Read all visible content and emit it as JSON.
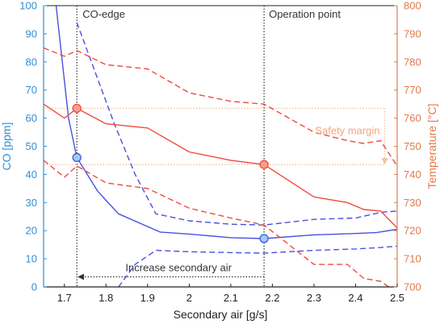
{
  "chart_data": {
    "type": "line",
    "xlabel": "Secondary air [g/s]",
    "ylabel_left": "CO [ppm]",
    "ylabel_right": "Temperature [°C]",
    "xlim": [
      1.65,
      2.5
    ],
    "ylim_left": [
      0,
      100
    ],
    "ylim_right": [
      700,
      800
    ],
    "x_ticks": [
      "1.7",
      "1.8",
      "1.9",
      "2",
      "2.1",
      "2.2",
      "2.3",
      "2.4",
      "2.5"
    ],
    "x_tick_values": [
      1.7,
      1.8,
      1.9,
      2.0,
      2.1,
      2.2,
      2.3,
      2.4,
      2.5
    ],
    "y_left_ticks": [
      "0",
      "10",
      "20",
      "30",
      "40",
      "50",
      "60",
      "70",
      "80",
      "90",
      "100"
    ],
    "y_left_tick_values": [
      0,
      10,
      20,
      30,
      40,
      50,
      60,
      70,
      80,
      90,
      100
    ],
    "y_right_ticks": [
      "700",
      "710",
      "720",
      "730",
      "740",
      "750",
      "760",
      "770",
      "780",
      "790",
      "800"
    ],
    "y_right_tick_values": [
      700,
      710,
      720,
      730,
      740,
      750,
      760,
      770,
      780,
      790,
      800
    ],
    "grid": false,
    "colors": {
      "co": "#4a50e0",
      "temperature": "#f04a3c",
      "left_axis": "#2f8fd6",
      "right_axis": "#e2784a",
      "safety": "#f6c29a",
      "marker_co_fill": "#9ccdf0",
      "marker_temp_fill": "#f4a08c"
    },
    "series": [
      {
        "axis": "left",
        "style": "solid",
        "color_key": "co",
        "points": [
          [
            1.68,
            100
          ],
          [
            1.71,
            60
          ],
          [
            1.73,
            46
          ],
          [
            1.78,
            34
          ],
          [
            1.83,
            26
          ],
          [
            1.93,
            19.5
          ],
          [
            2.0,
            18.8
          ],
          [
            2.1,
            17.5
          ],
          [
            2.18,
            17.2
          ],
          [
            2.3,
            18.5
          ],
          [
            2.4,
            19
          ],
          [
            2.45,
            19.3
          ],
          [
            2.5,
            20.5
          ]
        ]
      },
      {
        "axis": "left",
        "style": "dashed",
        "color_key": "co",
        "points": [
          [
            1.73,
            94
          ],
          [
            1.77,
            78
          ],
          [
            1.82,
            58
          ],
          [
            1.87,
            40
          ],
          [
            1.92,
            26
          ],
          [
            2.0,
            23.5
          ],
          [
            2.1,
            22.3
          ],
          [
            2.18,
            22
          ],
          [
            2.3,
            24
          ],
          [
            2.4,
            24.5
          ],
          [
            2.46,
            26.5
          ],
          [
            2.5,
            27
          ]
        ]
      },
      {
        "axis": "left",
        "style": "dashed",
        "color_key": "co",
        "points": [
          [
            1.83,
            0
          ],
          [
            1.87,
            8
          ],
          [
            1.92,
            13
          ],
          [
            2.0,
            12.5
          ],
          [
            2.1,
            12.2
          ],
          [
            2.18,
            12
          ],
          [
            2.3,
            13
          ],
          [
            2.4,
            13.5
          ],
          [
            2.46,
            14
          ],
          [
            2.5,
            14.5
          ]
        ]
      },
      {
        "axis": "right",
        "style": "solid",
        "color_key": "temperature",
        "points": [
          [
            1.65,
            765
          ],
          [
            1.7,
            760
          ],
          [
            1.73,
            763.5
          ],
          [
            1.8,
            758
          ],
          [
            1.9,
            756.5
          ],
          [
            2.0,
            748
          ],
          [
            2.1,
            745
          ],
          [
            2.18,
            743.5
          ],
          [
            2.3,
            732
          ],
          [
            2.38,
            730
          ],
          [
            2.42,
            727.5
          ],
          [
            2.46,
            727
          ],
          [
            2.5,
            721
          ]
        ]
      },
      {
        "axis": "right",
        "style": "dashed",
        "color_key": "temperature",
        "points": [
          [
            1.65,
            785
          ],
          [
            1.7,
            782
          ],
          [
            1.73,
            784
          ],
          [
            1.8,
            779
          ],
          [
            1.9,
            777.5
          ],
          [
            2.0,
            769
          ],
          [
            2.1,
            766
          ],
          [
            2.18,
            765
          ],
          [
            2.3,
            755
          ],
          [
            2.38,
            752
          ],
          [
            2.42,
            751
          ],
          [
            2.46,
            752
          ],
          [
            2.5,
            743
          ]
        ]
      },
      {
        "axis": "right",
        "style": "dashed",
        "color_key": "temperature",
        "points": [
          [
            1.65,
            745
          ],
          [
            1.7,
            739
          ],
          [
            1.73,
            743
          ],
          [
            1.8,
            737
          ],
          [
            1.9,
            735
          ],
          [
            2.0,
            728
          ],
          [
            2.1,
            724.5
          ],
          [
            2.18,
            722
          ],
          [
            2.3,
            708
          ],
          [
            2.38,
            708
          ],
          [
            2.42,
            703
          ],
          [
            2.46,
            702
          ],
          [
            2.5,
            698
          ]
        ]
      }
    ],
    "markers": [
      {
        "x": 1.73,
        "y": 46,
        "axis": "left",
        "color_key": "co"
      },
      {
        "x": 2.18,
        "y": 17.2,
        "axis": "left",
        "color_key": "co"
      },
      {
        "x": 1.73,
        "y": 763.5,
        "axis": "right",
        "color_key": "temperature"
      },
      {
        "x": 2.18,
        "y": 743.5,
        "axis": "right",
        "color_key": "temperature"
      }
    ],
    "vlines": [
      {
        "x": 1.73,
        "label": "CO-edge"
      },
      {
        "x": 2.18,
        "label": "Operation point"
      }
    ],
    "safety_margin": {
      "label": "Safety margin",
      "from_y": 763.5,
      "to_y": 743.5,
      "axis": "right",
      "x_end": 2.47
    },
    "arrow": {
      "label": "Increase secondary air",
      "from_x": 2.18,
      "to_x": 1.73,
      "y": 3,
      "axis": "left"
    }
  }
}
